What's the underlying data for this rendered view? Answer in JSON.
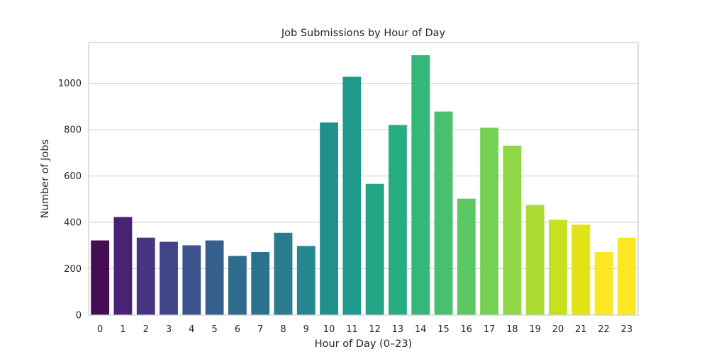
{
  "chart_data": {
    "type": "bar",
    "title": "Job Submissions by Hour of Day",
    "xlabel": "Hour of Day (0–23)",
    "ylabel": "Number of Jobs",
    "categories": [
      "0",
      "1",
      "2",
      "3",
      "4",
      "5",
      "6",
      "7",
      "8",
      "9",
      "10",
      "11",
      "12",
      "13",
      "14",
      "15",
      "16",
      "17",
      "18",
      "19",
      "20",
      "21",
      "22",
      "23"
    ],
    "values": [
      322,
      423,
      334,
      316,
      301,
      322,
      255,
      272,
      355,
      298,
      831,
      1028,
      566,
      820,
      1121,
      878,
      502,
      808,
      731,
      475,
      411,
      390,
      272,
      334
    ],
    "ylim": [
      0,
      1176
    ],
    "yticks": [
      0,
      200,
      400,
      600,
      800,
      1000
    ],
    "grid": "horizontal",
    "colors": [
      "#450d54",
      "#482374",
      "#463480",
      "#414487",
      "#3b528b",
      "#355f8d",
      "#306a8e",
      "#2c728e",
      "#287c8e",
      "#24868e",
      "#21908d",
      "#1f9a8a",
      "#21a585",
      "#27ad81",
      "#35b779",
      "#48c16e",
      "#5cc863",
      "#75d054",
      "#8fd744",
      "#aadc32",
      "#c7e020",
      "#e2e418",
      "#fde725",
      "#fde725"
    ]
  }
}
